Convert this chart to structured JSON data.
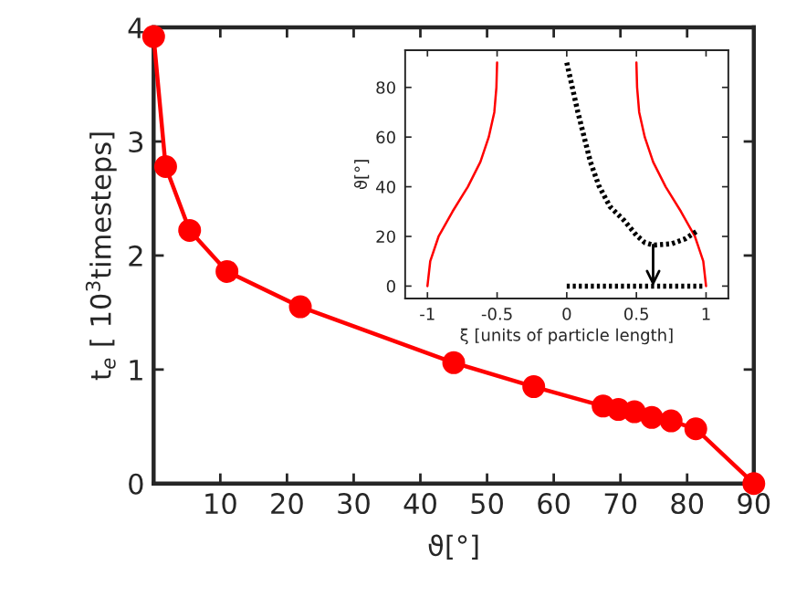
{
  "chart_data": [
    {
      "type": "line",
      "xlabel": "ϑ[°]",
      "ylabel": "t$_{e}$ [ 10$^{3}$timesteps]",
      "xlim": [
        0,
        90
      ],
      "ylim": [
        0,
        4
      ],
      "xticks": [
        10,
        20,
        30,
        40,
        50,
        60,
        70,
        80,
        90
      ],
      "yticks": [
        0,
        1,
        2,
        3,
        4
      ],
      "grid": false,
      "legend": false,
      "series": [
        {
          "color": "#ff0000",
          "marker": "circle",
          "line_style": "solid",
          "x": [
            0,
            1.8,
            5.4,
            11,
            22,
            45,
            57,
            67.4,
            69.7,
            72.1,
            74.7,
            77.6,
            81.3,
            90
          ],
          "values": [
            3.92,
            2.78,
            2.22,
            1.86,
            1.55,
            1.06,
            0.85,
            0.68,
            0.65,
            0.63,
            0.58,
            0.55,
            0.48,
            0
          ]
        }
      ]
    },
    {
      "type": "line",
      "xlabel": "ξ [units of particle length]",
      "ylabel": "ϑ[°]",
      "xlim": [
        -1.16,
        1.16
      ],
      "ylim": [
        -5,
        95
      ],
      "xticks": [
        -1,
        -0.5,
        0,
        0.5,
        1
      ],
      "yticks": [
        0,
        20,
        40,
        60,
        80
      ],
      "grid": false,
      "legend": false,
      "series": [
        {
          "color": "#ff0000",
          "marker": "none",
          "line_style": "solid",
          "x": [
            -1,
            -0.98,
            -0.92,
            -0.82,
            -0.71,
            -0.62,
            -0.56,
            -0.52,
            -0.505,
            -0.5
          ],
          "values": [
            0,
            10,
            20,
            30,
            40,
            50,
            60,
            70,
            80,
            90
          ]
        },
        {
          "color": "#ff0000",
          "marker": "none",
          "line_style": "solid",
          "x": [
            1,
            0.98,
            0.92,
            0.82,
            0.71,
            0.62,
            0.56,
            0.52,
            0.505,
            0.5
          ],
          "values": [
            0,
            10,
            20,
            30,
            40,
            50,
            60,
            70,
            80,
            90
          ]
        },
        {
          "color": "#000000",
          "marker": "none",
          "line_style": "dotted",
          "x": [
            0,
            0.04,
            0.08,
            0.125,
            0.17,
            0.23,
            0.31,
            0.41,
            0.5,
            0.56,
            0.62,
            0.75,
            0.85,
            0.94
          ],
          "values": [
            90,
            80,
            70,
            60,
            50,
            40.5,
            32,
            26.5,
            20.5,
            17.5,
            16.5,
            17,
            19,
            22.3
          ]
        },
        {
          "color": "#000000",
          "marker": "none",
          "line_style": "dotted",
          "x": [
            0,
            0.99
          ],
          "values": [
            0,
            0
          ]
        }
      ]
    }
  ]
}
